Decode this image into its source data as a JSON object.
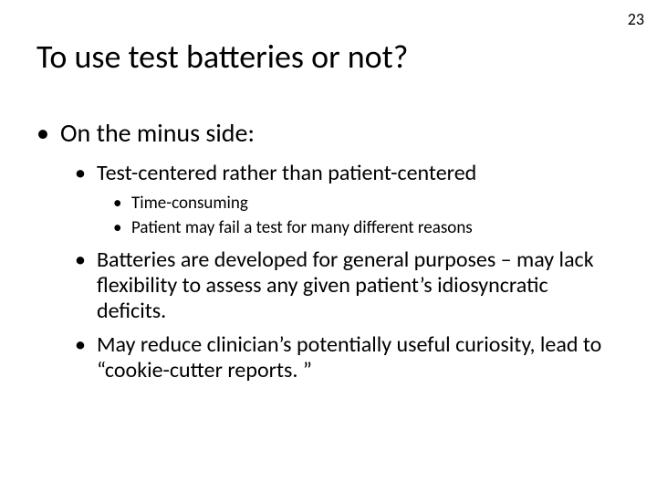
{
  "page_number": "23",
  "title": "To use test batteries or not?",
  "bullets": {
    "l1_0": "On the minus side:",
    "l2_0": "Test-centered rather than patient-centered",
    "l3_0": "Time-consuming",
    "l3_1": "Patient may fail a test for many different reasons",
    "l2_1": "Batteries are developed for general purposes – may lack flexibility to assess any given patient’s idiosyncratic deficits.",
    "l2_2": "May reduce clinician’s potentially useful curiosity, lead to “cookie-cutter reports. ”"
  },
  "style": {
    "background_color": "#ffffff",
    "text_color": "#000000",
    "title_fontsize": 36,
    "l1_fontsize": 28,
    "l2_fontsize": 24,
    "l3_fontsize": 19,
    "font_family": "Calibri"
  }
}
